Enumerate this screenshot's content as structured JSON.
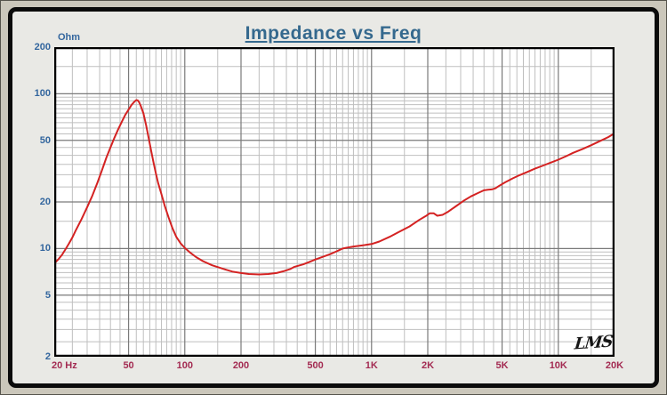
{
  "page": {
    "outer_background": "#CBC7BB",
    "panel_background": "#E9E9E5",
    "frame_color": "#0B0B0B"
  },
  "title": {
    "text": "Impedance vs Freq",
    "color": "#35698E"
  },
  "logo": {
    "text": "LMS"
  },
  "chart_data": {
    "type": "line",
    "title": "Impedance vs Freq",
    "x_axis": {
      "label": "Hz",
      "scale": "log",
      "min": 20,
      "max": 20000,
      "tick_color": "#A32B52",
      "ticks": [
        {
          "value": 20,
          "label": "20 Hz"
        },
        {
          "value": 50,
          "label": "50"
        },
        {
          "value": 100,
          "label": "100"
        },
        {
          "value": 200,
          "label": "200"
        },
        {
          "value": 500,
          "label": "500"
        },
        {
          "value": 1000,
          "label": "1K"
        },
        {
          "value": 2000,
          "label": "2K"
        },
        {
          "value": 5000,
          "label": "5K"
        },
        {
          "value": 10000,
          "label": "10K"
        },
        {
          "value": 20000,
          "label": "20K"
        }
      ]
    },
    "y_axis": {
      "label": "Ohm",
      "scale": "log",
      "min": 2,
      "max": 200,
      "tick_color": "#33669E",
      "ticks": [
        {
          "value": 200,
          "label": "200"
        },
        {
          "value": 100,
          "label": "100"
        },
        {
          "value": 50,
          "label": "50"
        },
        {
          "value": 20,
          "label": "20"
        },
        {
          "value": 10,
          "label": "10"
        },
        {
          "value": 5,
          "label": "5"
        },
        {
          "value": 2,
          "label": "2"
        }
      ]
    },
    "grid": {
      "visible": true,
      "minor_multipliers": [
        1,
        1.5,
        2,
        2.5,
        3,
        3.5,
        4,
        4.5,
        5,
        5.5,
        6,
        6.5,
        7,
        7.5,
        8,
        8.5,
        9,
        9.5
      ],
      "minor_color": "#BFBFBF",
      "major_color": "#7A7A7A",
      "plot_background": "#FFFFFF",
      "border_color": "#000000"
    },
    "series": [
      {
        "name": "Impedance",
        "color": "#D42222",
        "width": 2,
        "points": [
          [
            20,
            8.0
          ],
          [
            21,
            8.5
          ],
          [
            22,
            9.1
          ],
          [
            23,
            9.9
          ],
          [
            24,
            10.8
          ],
          [
            25,
            11.8
          ],
          [
            26,
            13.0
          ],
          [
            28,
            15.5
          ],
          [
            30,
            18.5
          ],
          [
            32,
            22.0
          ],
          [
            34,
            26.5
          ],
          [
            36,
            32.0
          ],
          [
            38,
            38.5
          ],
          [
            40,
            45.0
          ],
          [
            42,
            52.0
          ],
          [
            44,
            59.0
          ],
          [
            46,
            66.0
          ],
          [
            48,
            73.0
          ],
          [
            50,
            79.0
          ],
          [
            52,
            85.0
          ],
          [
            54,
            89.5
          ],
          [
            55,
            91.0
          ],
          [
            56,
            90.5
          ],
          [
            57,
            88.0
          ],
          [
            58,
            84.0
          ],
          [
            60,
            75.0
          ],
          [
            62,
            63.0
          ],
          [
            64,
            52.0
          ],
          [
            66,
            43.0
          ],
          [
            68,
            36.0
          ],
          [
            70,
            30.5
          ],
          [
            72,
            26.5
          ],
          [
            75,
            22.5
          ],
          [
            78,
            19.0
          ],
          [
            82,
            15.8
          ],
          [
            86,
            13.5
          ],
          [
            90,
            11.9
          ],
          [
            95,
            10.8
          ],
          [
            100,
            10.1
          ],
          [
            107,
            9.4
          ],
          [
            115,
            8.8
          ],
          [
            125,
            8.3
          ],
          [
            140,
            7.8
          ],
          [
            160,
            7.4
          ],
          [
            180,
            7.1
          ],
          [
            200,
            6.95
          ],
          [
            220,
            6.85
          ],
          [
            250,
            6.8
          ],
          [
            280,
            6.85
          ],
          [
            310,
            6.95
          ],
          [
            340,
            7.15
          ],
          [
            365,
            7.35
          ],
          [
            385,
            7.6
          ],
          [
            400,
            7.7
          ],
          [
            430,
            7.9
          ],
          [
            460,
            8.15
          ],
          [
            500,
            8.5
          ],
          [
            550,
            8.85
          ],
          [
            600,
            9.2
          ],
          [
            650,
            9.6
          ],
          [
            700,
            10.0
          ],
          [
            740,
            10.15
          ],
          [
            800,
            10.3
          ],
          [
            900,
            10.5
          ],
          [
            1000,
            10.7
          ],
          [
            1100,
            11.1
          ],
          [
            1250,
            11.9
          ],
          [
            1400,
            12.8
          ],
          [
            1600,
            13.9
          ],
          [
            1800,
            15.3
          ],
          [
            1950,
            16.2
          ],
          [
            2050,
            16.9
          ],
          [
            2150,
            16.9
          ],
          [
            2250,
            16.3
          ],
          [
            2400,
            16.5
          ],
          [
            2550,
            17.2
          ],
          [
            2800,
            18.6
          ],
          [
            3100,
            20.3
          ],
          [
            3400,
            21.7
          ],
          [
            3700,
            22.8
          ],
          [
            4000,
            23.8
          ],
          [
            4200,
            24.0
          ],
          [
            4400,
            24.1
          ],
          [
            4600,
            24.5
          ],
          [
            4800,
            25.3
          ],
          [
            5200,
            26.8
          ],
          [
            5700,
            28.4
          ],
          [
            6200,
            29.8
          ],
          [
            6800,
            31.2
          ],
          [
            7500,
            32.8
          ],
          [
            8200,
            34.2
          ],
          [
            9000,
            35.7
          ],
          [
            10000,
            37.5
          ],
          [
            11000,
            39.5
          ],
          [
            12000,
            41.5
          ],
          [
            13500,
            44.0
          ],
          [
            15000,
            46.5
          ],
          [
            17000,
            50.0
          ],
          [
            18500,
            52.5
          ],
          [
            20000,
            55.5
          ]
        ]
      }
    ]
  }
}
